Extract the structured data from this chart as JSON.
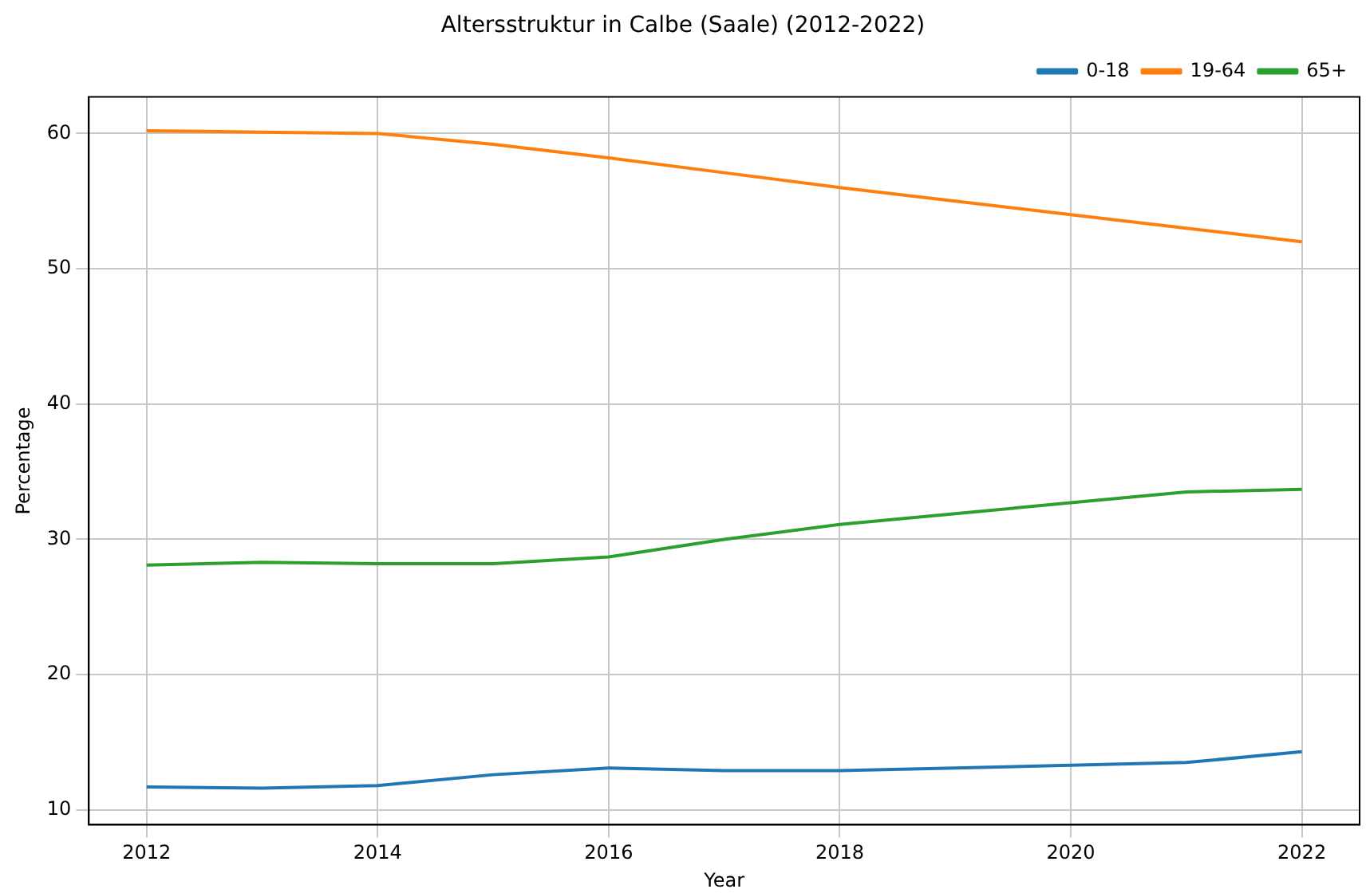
{
  "chart_data": {
    "type": "line",
    "title": "Altersstruktur in Calbe (Saale) (2012-2022)",
    "xlabel": "Year",
    "ylabel": "Percentage",
    "x": [
      2012,
      2013,
      2014,
      2015,
      2016,
      2017,
      2018,
      2019,
      2020,
      2021,
      2022
    ],
    "series": [
      {
        "name": "0-18",
        "color": "#1f77b4",
        "values": [
          11.7,
          11.6,
          11.8,
          12.6,
          13.1,
          12.9,
          12.9,
          13.1,
          13.3,
          13.5,
          14.3
        ]
      },
      {
        "name": "19-64",
        "color": "#ff7f0e",
        "values": [
          60.2,
          60.1,
          60.0,
          59.2,
          58.2,
          57.1,
          56.0,
          55.0,
          54.0,
          53.0,
          52.0
        ]
      },
      {
        "name": "65+",
        "color": "#2ca02c",
        "values": [
          28.1,
          28.3,
          28.2,
          28.2,
          28.7,
          30.0,
          31.1,
          31.9,
          32.7,
          33.5,
          33.7
        ]
      }
    ],
    "xlim": [
      2011.5,
      2022.5
    ],
    "xticks": [
      2012,
      2014,
      2016,
      2018,
      2020,
      2022
    ],
    "ylim": [
      8.9,
      62.7
    ],
    "yticks": [
      10,
      20,
      30,
      40,
      50,
      60
    ],
    "grid": true,
    "legend": "top right",
    "marker": "none",
    "line_style": "solid"
  }
}
